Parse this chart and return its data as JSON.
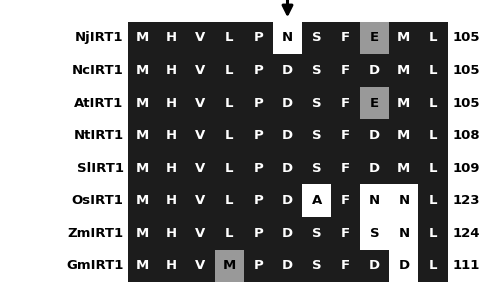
{
  "species": [
    "NjIRT1",
    "NcIRT1",
    "AtIRT1",
    "NtIRT1",
    "SlIRT1",
    "OsIRT1",
    "ZmIRT1",
    "GmIRT1"
  ],
  "numbers": [
    105,
    105,
    105,
    108,
    109,
    123,
    124,
    111
  ],
  "sequences": [
    [
      "M",
      "H",
      "V",
      "L",
      "P",
      "N",
      "S",
      "F",
      "E",
      "M",
      "L"
    ],
    [
      "M",
      "H",
      "V",
      "L",
      "P",
      "D",
      "S",
      "F",
      "D",
      "M",
      "L"
    ],
    [
      "M",
      "H",
      "V",
      "L",
      "P",
      "D",
      "S",
      "F",
      "E",
      "M",
      "L"
    ],
    [
      "M",
      "H",
      "V",
      "L",
      "P",
      "D",
      "S",
      "F",
      "D",
      "M",
      "L"
    ],
    [
      "M",
      "H",
      "V",
      "L",
      "P",
      "D",
      "S",
      "F",
      "D",
      "M",
      "L"
    ],
    [
      "M",
      "H",
      "V",
      "L",
      "P",
      "D",
      "A",
      "F",
      "N",
      "N",
      "L"
    ],
    [
      "M",
      "H",
      "V",
      "L",
      "P",
      "D",
      "S",
      "F",
      "S",
      "N",
      "L"
    ],
    [
      "M",
      "H",
      "V",
      "M",
      "P",
      "D",
      "S",
      "F",
      "D",
      "D",
      "L"
    ]
  ],
  "cell_bg": [
    [
      "black",
      "black",
      "black",
      "black",
      "black",
      "white",
      "black",
      "black",
      "gray",
      "black",
      "black"
    ],
    [
      "black",
      "black",
      "black",
      "black",
      "black",
      "black",
      "black",
      "black",
      "black",
      "black",
      "black"
    ],
    [
      "black",
      "black",
      "black",
      "black",
      "black",
      "black",
      "black",
      "black",
      "gray",
      "black",
      "black"
    ],
    [
      "black",
      "black",
      "black",
      "black",
      "black",
      "black",
      "black",
      "black",
      "black",
      "black",
      "black"
    ],
    [
      "black",
      "black",
      "black",
      "black",
      "black",
      "black",
      "black",
      "black",
      "black",
      "black",
      "black"
    ],
    [
      "black",
      "black",
      "black",
      "black",
      "black",
      "black",
      "white",
      "black",
      "white",
      "white",
      "black"
    ],
    [
      "black",
      "black",
      "black",
      "black",
      "black",
      "black",
      "black",
      "black",
      "white",
      "white",
      "black"
    ],
    [
      "black",
      "black",
      "black",
      "gray",
      "black",
      "black",
      "black",
      "black",
      "black",
      "white",
      "black"
    ]
  ],
  "cell_fg": [
    [
      "white",
      "white",
      "white",
      "white",
      "white",
      "black",
      "white",
      "white",
      "black",
      "white",
      "white"
    ],
    [
      "white",
      "white",
      "white",
      "white",
      "white",
      "white",
      "white",
      "white",
      "white",
      "white",
      "white"
    ],
    [
      "white",
      "white",
      "white",
      "white",
      "white",
      "white",
      "white",
      "white",
      "black",
      "white",
      "white"
    ],
    [
      "white",
      "white",
      "white",
      "white",
      "white",
      "white",
      "white",
      "white",
      "white",
      "white",
      "white"
    ],
    [
      "white",
      "white",
      "white",
      "white",
      "white",
      "white",
      "white",
      "white",
      "white",
      "white",
      "white"
    ],
    [
      "white",
      "white",
      "white",
      "white",
      "white",
      "white",
      "black",
      "white",
      "black",
      "black",
      "white"
    ],
    [
      "white",
      "white",
      "white",
      "white",
      "white",
      "white",
      "white",
      "white",
      "black",
      "black",
      "white"
    ],
    [
      "white",
      "white",
      "white",
      "black",
      "white",
      "white",
      "white",
      "white",
      "white",
      "black",
      "white"
    ]
  ],
  "box_bg": "#1c1c1c",
  "outer_bg": "white",
  "arrow_col_idx": 5,
  "n_cols": 11,
  "n_rows": 8,
  "fig_w": 5.0,
  "fig_h": 2.88,
  "label_fontsize": 9.5,
  "seq_fontsize": 9.5,
  "num_fontsize": 9.5
}
